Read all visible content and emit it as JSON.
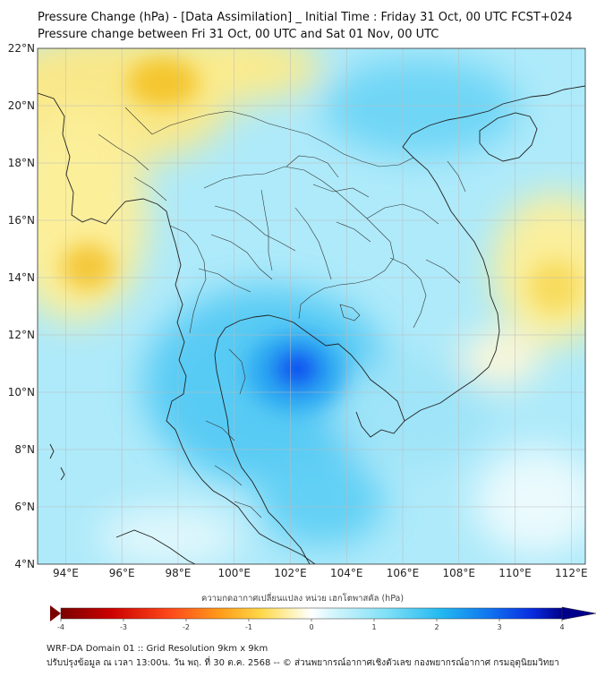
{
  "header": {
    "title_line1": "Pressure Change (hPa) - [Data Assimilation] _ Initial Time : Friday 31 Oct, 00 UTC FCST+024",
    "title_line2": "Pressure change between Fri 31 Oct, 00 UTC and Sat 01 Nov, 00 UTC"
  },
  "map": {
    "lat_labels": [
      "4°N",
      "6°N",
      "8°N",
      "10°N",
      "12°N",
      "14°N",
      "16°N",
      "18°N",
      "20°N",
      "22°N"
    ],
    "lon_labels": [
      "94°E",
      "96°E",
      "98°E",
      "100°E",
      "102°E",
      "104°E",
      "106°E",
      "108°E",
      "110°E",
      "112°E"
    ],
    "lat_range": [
      4,
      22
    ],
    "lon_range": [
      93,
      112.5
    ],
    "grid": true,
    "field_anomalies": [
      {
        "lon": 102.3,
        "lat": 10.8,
        "value": 3.4
      },
      {
        "lon": 98.0,
        "lat": 21.0,
        "value": -1.2
      },
      {
        "lon": 94.8,
        "lat": 14.5,
        "value": -1.2
      },
      {
        "lon": 94.0,
        "lat": 19.0,
        "value": -0.9
      },
      {
        "lon": 111.5,
        "lat": 14.5,
        "value": -1.0
      },
      {
        "lon": 106.0,
        "lat": 21.5,
        "value": 2.0
      },
      {
        "lon": 101.5,
        "lat": 6.0,
        "value": 2.4
      }
    ]
  },
  "colorbar": {
    "title": "ความกดอากาศเปลี่ยนแปลง หน่วย เฮกโตพาสคัล (hPa)",
    "ticks": [
      "-4",
      "-3",
      "-2",
      "-1",
      "0",
      "1",
      "2",
      "3",
      "4"
    ],
    "range": [
      -4,
      4
    ]
  },
  "footer": {
    "line1": "WRF-DA Domain 01 :: Grid Resolution 9km x 9km",
    "line2": "ปรับปรุงข้อมูล ณ เวลา 13:00น. วัน พฤ. ที่ 30 ต.ค. 2568 -- © ส่วนพยากรณ์อากาศเชิงตัวเลข กองพยากรณ์อากาศ กรมอุตุนิยมวิทยา"
  },
  "colors": {
    "strong_rise": "#0a3cf0",
    "moderate_rise": "#33c8f5",
    "weak_rise": "#c8f4fc",
    "neutral": "#ffffff",
    "fall": "#f7d640",
    "strong_fall": "#8b0000",
    "coastline": "#222222",
    "grid": "#bbbbbb"
  }
}
